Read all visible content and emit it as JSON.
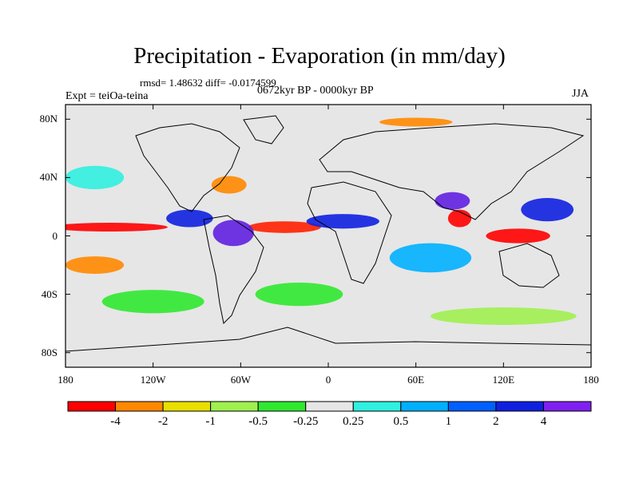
{
  "title": "Precipitation - Evaporation (in mm/day)",
  "stats": "rmsd= 1.48632 diff= -0.0174599",
  "period": "0672kyr BP - 0000kyr BP",
  "experiment": "Expt = teiOa-teina",
  "season": "JJA",
  "map": {
    "lat_ticks": [
      "80N",
      "40N",
      "0",
      "40S",
      "80S"
    ],
    "lat_values": [
      80,
      40,
      0,
      -40,
      -80
    ],
    "lon_ticks": [
      "180",
      "120W",
      "60W",
      "0",
      "60E",
      "120E",
      "180"
    ],
    "lon_values": [
      -180,
      -120,
      -60,
      0,
      60,
      120,
      180
    ],
    "lat_range": [
      -90,
      90
    ],
    "lon_range": [
      -180,
      180
    ]
  },
  "colorbar": {
    "colors": [
      "#ff0000",
      "#ff8800",
      "#e8e000",
      "#a0f050",
      "#30e830",
      "#e6e6e6",
      "#30f0e0",
      "#00b0ff",
      "#0060ff",
      "#1020e0",
      "#8020f0"
    ],
    "labels": [
      "-4",
      "-2",
      "-1",
      "-0.5",
      "-0.25",
      "0.25",
      "0.5",
      "1",
      "2",
      "4"
    ]
  },
  "features": [
    {
      "name": "pacific-itcz-dry-band",
      "color": "#ff0000",
      "lon": -150,
      "lat": 6,
      "rx": 40,
      "ry": 3
    },
    {
      "name": "atlantic-itcz-dry-band",
      "color": "#ff2000",
      "lon": -30,
      "lat": 6,
      "rx": 25,
      "ry": 4
    },
    {
      "name": "south-america-wet",
      "color": "#6020e0",
      "lon": -65,
      "lat": 2,
      "rx": 14,
      "ry": 9
    },
    {
      "name": "central-america-wet",
      "color": "#1020e0",
      "lon": -95,
      "lat": 12,
      "rx": 16,
      "ry": 6
    },
    {
      "name": "north-atlantic-dry",
      "color": "#ff8800",
      "lon": -68,
      "lat": 35,
      "rx": 12,
      "ry": 6
    },
    {
      "name": "north-pacific-wet",
      "color": "#30f0e0",
      "lon": -160,
      "lat": 40,
      "rx": 20,
      "ry": 8
    },
    {
      "name": "africa-monsoon-wet",
      "color": "#1020e0",
      "lon": 10,
      "lat": 10,
      "rx": 25,
      "ry": 5
    },
    {
      "name": "indian-monsoon-wet",
      "color": "#6020e0",
      "lon": 85,
      "lat": 24,
      "rx": 12,
      "ry": 6
    },
    {
      "name": "bay-of-bengal-dry",
      "color": "#ff0000",
      "lon": 90,
      "lat": 12,
      "rx": 8,
      "ry": 6
    },
    {
      "name": "maritime-continent-dry",
      "color": "#ff0000",
      "lon": 130,
      "lat": 0,
      "rx": 22,
      "ry": 5
    },
    {
      "name": "west-pacific-wet",
      "color": "#1020e0",
      "lon": 150,
      "lat": 18,
      "rx": 18,
      "ry": 8
    },
    {
      "name": "southern-indian-wet",
      "color": "#00b0ff",
      "lon": 70,
      "lat": -15,
      "rx": 28,
      "ry": 10
    },
    {
      "name": "south-pacific-dry",
      "color": "#ff8800",
      "lon": -160,
      "lat": -20,
      "rx": 20,
      "ry": 6
    },
    {
      "name": "south-atlantic-green",
      "color": "#30e830",
      "lon": -20,
      "lat": -40,
      "rx": 30,
      "ry": 8
    },
    {
      "name": "southern-ocean-green",
      "color": "#a0f050",
      "lon": 120,
      "lat": -55,
      "rx": 50,
      "ry": 6
    },
    {
      "name": "arctic-orange",
      "color": "#ff8800",
      "lon": 60,
      "lat": 78,
      "rx": 25,
      "ry": 3
    },
    {
      "name": "south-pacific-green",
      "color": "#30e830",
      "lon": -120,
      "lat": -45,
      "rx": 35,
      "ry": 8
    }
  ]
}
